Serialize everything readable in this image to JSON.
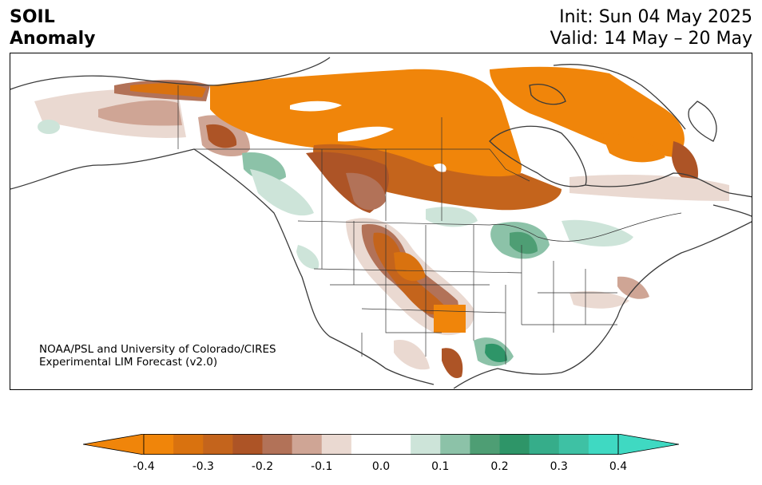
{
  "header": {
    "variable": "SOIL",
    "quantity": "Anomaly",
    "init": "Init: Sun 04 May 2025",
    "valid": "Valid: 14 May – 20 May"
  },
  "credit": {
    "line1": "NOAA/PSL and University of Colorado/CIRES",
    "line2": "Experimental LIM Forecast (v2.0)"
  },
  "colorbar": {
    "colors": [
      "#f0850a",
      "#d9720f",
      "#c4641c",
      "#ad5426",
      "#b27258",
      "#cfa595",
      "#ead9d1",
      "#ffffff",
      "#ffffff",
      "#cde4d9",
      "#8cc2a8",
      "#4e9e74",
      "#2e9568",
      "#36ad8a",
      "#3ec1a4",
      "#3fd9c2"
    ],
    "low_color": "#f0850a",
    "high_color": "#3fd9c2",
    "ticks": [
      "-0.4",
      "-0.3",
      "-0.2",
      "-0.1",
      "0.0",
      "0.1",
      "0.2",
      "0.3",
      "0.4"
    ]
  },
  "map_colors": {
    "land": "#ffffff",
    "border": "#333333",
    "coast": "#3a3a3a"
  }
}
